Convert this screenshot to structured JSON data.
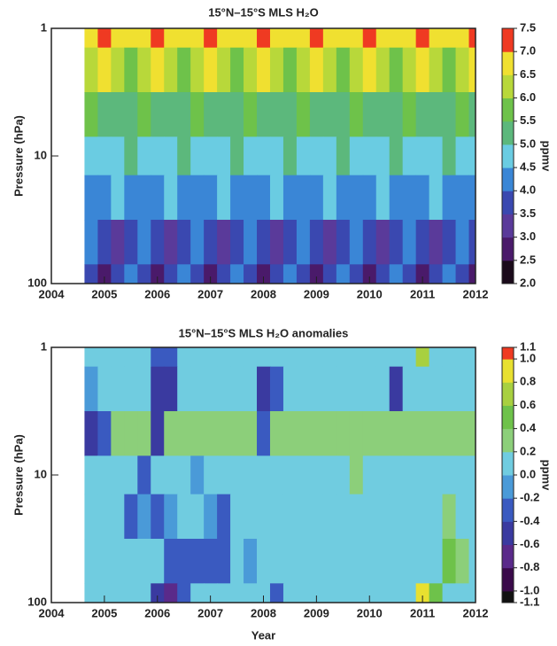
{
  "chart_data": [
    {
      "type": "contour",
      "title": "15°N–15°S MLS H₂O",
      "ylabel": "Pressure (hPa)",
      "colorbar_label": "ppmv",
      "yscale": "log",
      "xlim": [
        2004,
        2012
      ],
      "ylim": [
        100,
        1
      ],
      "xticks": [
        2004,
        2005,
        2006,
        2007,
        2008,
        2009,
        2010,
        2011,
        2012
      ],
      "yticks": [
        1,
        10,
        100
      ],
      "x": [
        2004.75,
        2005,
        2005.25,
        2005.5,
        2005.75,
        2006,
        2006.25,
        2006.5,
        2006.75,
        2007,
        2007.25,
        2007.5,
        2007.75,
        2008,
        2008.25,
        2008.5,
        2008.75,
        2009,
        2009.25,
        2009.5,
        2009.75,
        2010,
        2010.25,
        2010.5,
        2010.75,
        2011,
        2011.25,
        2011.5,
        2011.75,
        2012
      ],
      "y": [
        1,
        2,
        5,
        10,
        20,
        50,
        100
      ],
      "z": [
        [
          7.0,
          7.4,
          7.0,
          6.6,
          7.0,
          7.4,
          7.0,
          6.6,
          7.0,
          7.4,
          7.0,
          6.6,
          7.0,
          7.4,
          7.0,
          6.6,
          7.0,
          7.4,
          7.0,
          6.6,
          7.0,
          7.4,
          7.0,
          6.6,
          7.0,
          7.4,
          7.0,
          6.6,
          7.0,
          7.4
        ],
        [
          6.3,
          6.6,
          6.3,
          6.0,
          6.3,
          6.6,
          6.3,
          6.0,
          6.3,
          6.6,
          6.3,
          6.0,
          6.3,
          6.6,
          6.3,
          6.0,
          6.3,
          6.6,
          6.3,
          6.0,
          6.3,
          6.6,
          6.3,
          6.0,
          6.3,
          6.6,
          6.3,
          6.0,
          6.3,
          6.6
        ],
        [
          5.65,
          5.5,
          5.35,
          5.5,
          5.65,
          5.5,
          5.35,
          5.5,
          5.65,
          5.5,
          5.35,
          5.5,
          5.65,
          5.5,
          5.35,
          5.5,
          5.65,
          5.5,
          5.35,
          5.5,
          5.65,
          5.5,
          5.35,
          5.5,
          5.65,
          5.5,
          5.35,
          5.5,
          5.65,
          5.5
        ],
        [
          5.0,
          4.8,
          5.0,
          5.2,
          5.0,
          4.8,
          5.0,
          5.2,
          5.0,
          4.8,
          5.0,
          5.2,
          5.0,
          4.8,
          5.0,
          5.2,
          5.0,
          4.8,
          5.0,
          5.2,
          5.0,
          4.8,
          5.0,
          5.2,
          5.0,
          4.8,
          5.0,
          5.2,
          5.0,
          4.8
        ],
        [
          4.1,
          4.5,
          4.9,
          4.5,
          4.1,
          4.5,
          4.9,
          4.5,
          4.1,
          4.5,
          4.9,
          4.5,
          4.1,
          4.5,
          4.9,
          4.5,
          4.1,
          4.5,
          4.9,
          4.5,
          4.1,
          4.5,
          4.9,
          4.5,
          4.1,
          4.5,
          4.9,
          4.5,
          4.1,
          4.5
        ],
        [
          4.5,
          4.0,
          3.5,
          4.0,
          4.5,
          4.0,
          3.5,
          4.0,
          4.5,
          4.0,
          3.5,
          4.0,
          4.5,
          4.0,
          3.5,
          4.0,
          4.5,
          4.0,
          3.5,
          4.0,
          4.5,
          4.0,
          3.5,
          4.0,
          4.5,
          4.0,
          3.5,
          4.0,
          4.5,
          4.0
        ],
        [
          3.6,
          2.8,
          3.6,
          4.4,
          3.6,
          2.8,
          3.6,
          4.4,
          3.6,
          2.8,
          3.6,
          4.4,
          3.6,
          2.8,
          3.6,
          4.4,
          3.6,
          2.8,
          3.6,
          4.4,
          3.6,
          2.8,
          3.6,
          4.4,
          3.6,
          2.8,
          3.6,
          4.4,
          3.6,
          2.8
        ]
      ],
      "levels": [
        2.0,
        2.5,
        3.0,
        3.5,
        4.0,
        4.5,
        5.0,
        5.5,
        6.0,
        6.5,
        7.0,
        7.5
      ],
      "colors": [
        "#1a0a1a",
        "#4a1a6a",
        "#5a3a9a",
        "#3a48b0",
        "#3a86d6",
        "#6acce2",
        "#5cb87c",
        "#6ec24a",
        "#b8d83a",
        "#f0e030",
        "#ef3a22"
      ],
      "colorbar_ticks": [
        {
          "value": 2,
          "label": "2.0"
        },
        2.5,
        {
          "value": 3,
          "label": "3.0"
        },
        3.5,
        {
          "value": 4,
          "label": "4.0"
        },
        4.5,
        {
          "value": 5,
          "label": "5.0"
        },
        5.5,
        {
          "value": 6,
          "label": "6.0"
        },
        6.5,
        {
          "value": 7,
          "label": "7.0"
        },
        7.5
      ]
    },
    {
      "type": "contour",
      "title": "15°N–15°S MLS H₂O anomalies",
      "ylabel": "Pressure (hPa)",
      "xlabel": "Year",
      "colorbar_label": "ppmv",
      "yscale": "log",
      "xlim": [
        2004,
        2012
      ],
      "ylim": [
        100,
        1
      ],
      "xticks": [
        2004,
        2005,
        2006,
        2007,
        2008,
        2009,
        2010,
        2011,
        2012
      ],
      "yticks": [
        1,
        10,
        100
      ],
      "x": [
        2004.75,
        2005,
        2005.25,
        2005.5,
        2005.75,
        2006,
        2006.25,
        2006.5,
        2006.75,
        2007,
        2007.25,
        2007.5,
        2007.75,
        2008,
        2008.25,
        2008.5,
        2008.75,
        2009,
        2009.25,
        2009.5,
        2009.75,
        2010,
        2010.25,
        2010.5,
        2010.75,
        2011,
        2011.25,
        2011.5,
        2011.75,
        2012
      ],
      "y": [
        1,
        2,
        5,
        10,
        20,
        50,
        100
      ],
      "z": [
        [
          0.1,
          0.1,
          0.2,
          0.1,
          0.1,
          -0.3,
          -0.2,
          0.1,
          0.1,
          0.2,
          0.1,
          0.1,
          0.1,
          0.1,
          0.2,
          0.1,
          0.1,
          0.1,
          0.2,
          0.1,
          0.1,
          0.1,
          0.2,
          0.1,
          0.1,
          0.7,
          0.2,
          0.1,
          0.1,
          0.1
        ],
        [
          -0.1,
          0.2,
          0.2,
          0.2,
          0.2,
          -0.5,
          -0.4,
          0.2,
          0.2,
          0.2,
          0.2,
          0.2,
          0.2,
          -0.5,
          -0.3,
          0.2,
          0.2,
          0.2,
          0.2,
          0.2,
          0.2,
          0.2,
          0.2,
          -0.4,
          0.2,
          0.2,
          0.2,
          0.2,
          0.2,
          0.2
        ],
        [
          -0.5,
          -0.2,
          0.3,
          0.3,
          0.3,
          -0.4,
          0.3,
          0.3,
          0.3,
          0.3,
          0.3,
          0.3,
          0.3,
          -0.2,
          0.3,
          0.3,
          0.3,
          0.4,
          0.3,
          0.3,
          0.3,
          0.3,
          0.3,
          0.3,
          0.3,
          0.3,
          0.3,
          0.3,
          0.3,
          0.3
        ],
        [
          0.2,
          0.2,
          0.2,
          0.2,
          -0.3,
          0.2,
          0.2,
          0.2,
          -0.1,
          0.2,
          0.2,
          0.2,
          0.2,
          0.2,
          0.2,
          0.2,
          0.2,
          0.2,
          0.2,
          0.2,
          0.4,
          0.2,
          0.2,
          0.2,
          0.2,
          0.2,
          0.2,
          0.2,
          0.2,
          0.2
        ],
        [
          0.2,
          0.2,
          0.2,
          -0.2,
          -0.1,
          -0.2,
          -0.1,
          0.2,
          0.2,
          -0.1,
          -0.2,
          0.2,
          0.2,
          0.2,
          0.2,
          0.2,
          0.2,
          0.2,
          0.2,
          0.2,
          0.2,
          0.2,
          0.2,
          0.2,
          0.2,
          0.2,
          0.2,
          0.4,
          0.2,
          0.2
        ],
        [
          0.1,
          0.1,
          0.1,
          0.1,
          0.1,
          0.1,
          -0.2,
          -0.2,
          -0.2,
          -0.2,
          -0.2,
          0.1,
          -0.1,
          0.1,
          0.1,
          0.1,
          0.1,
          0.1,
          0.1,
          0.1,
          0.1,
          0.1,
          0.1,
          0.1,
          0.1,
          0.1,
          0.1,
          0.6,
          0.4,
          0.1
        ],
        [
          0.1,
          0.1,
          0.1,
          0.1,
          0.1,
          -0.5,
          -0.6,
          -0.3,
          0.1,
          0.1,
          0.1,
          0.1,
          0.1,
          0.1,
          -0.3,
          0.1,
          0.1,
          0.1,
          0.1,
          0.1,
          0.1,
          0.1,
          0.1,
          0.1,
          0.1,
          1.0,
          0.6,
          0.1,
          0.1,
          0.1
        ]
      ],
      "levels": [
        -1.1,
        -1.0,
        -0.8,
        -0.6,
        -0.4,
        -0.2,
        0,
        0.2,
        0.4,
        0.6,
        0.8,
        1.0,
        1.1
      ],
      "colors": [
        "#111111",
        "#3a0a4a",
        "#5a2a8a",
        "#3a3aa0",
        "#3a5ac0",
        "#4a9ad8",
        "#70cce0",
        "#8ccf7a",
        "#6ec24a",
        "#a8d040",
        "#e8e030",
        "#ef3a22"
      ],
      "colorbar_ticks": [
        -1.1,
        {
          "value": -1,
          "label": "-1.0"
        },
        -0.8,
        -0.6,
        -0.4,
        -0.2,
        {
          "value": 0,
          "label": "0.0"
        },
        0.2,
        0.4,
        0.6,
        0.8,
        {
          "value": 1,
          "label": "1.0"
        },
        1.1
      ]
    }
  ]
}
